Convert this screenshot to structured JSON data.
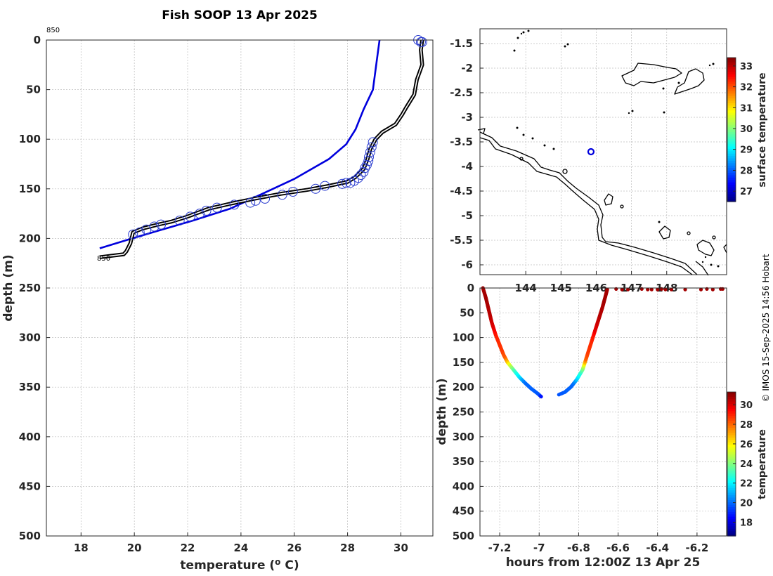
{
  "chart_data": [
    {
      "type": "line",
      "name": "profile",
      "title": "Fish SOOP 13 Apr 2025",
      "xlabel": "temperature (",
      "xlabel_sup": "o",
      "xlabel_unit": " C)",
      "ylabel": "depth (m)",
      "xlim": [
        16.7,
        31.2
      ],
      "ylim": [
        500,
        0
      ],
      "xticks": [
        18,
        20,
        22,
        24,
        26,
        28,
        30
      ],
      "yticks": [
        0,
        50,
        100,
        150,
        200,
        250,
        300,
        350,
        400,
        450,
        500
      ],
      "annotation_top": "850",
      "annotation_bottom": "850",
      "grid": true,
      "series": [
        {
          "name": "climatology",
          "color": "#0000dd",
          "x": [
            29.2,
            29.1,
            28.95,
            28.6,
            28.3,
            27.95,
            27.3,
            26.0,
            24.8,
            23.6,
            22.2,
            20.8,
            19.8,
            18.7
          ],
          "y": [
            0,
            20,
            50,
            70,
            90,
            105,
            120,
            140,
            155,
            170,
            182,
            193,
            201,
            210
          ]
        },
        {
          "name": "profile",
          "color": "#000000",
          "x": [
            30.8,
            30.75,
            30.8,
            30.6,
            30.5,
            30.2,
            30.05,
            29.8,
            29.3,
            29.05,
            28.85,
            28.75,
            28.6,
            28.3,
            28.0,
            27.3,
            26.5,
            25.5,
            24.5,
            23.6,
            22.8,
            22.0,
            21.4,
            20.9,
            20.3,
            19.95,
            19.85,
            19.7,
            19.6,
            18.7
          ],
          "y": [
            0,
            10,
            25,
            40,
            55,
            68,
            75,
            85,
            93,
            100,
            110,
            120,
            130,
            138,
            143,
            147,
            151,
            155,
            160,
            165,
            170,
            178,
            183,
            186,
            190,
            194,
            205,
            213,
            216,
            219
          ]
        },
        {
          "name": "flagged",
          "color": "#2a3ccf",
          "x": [
            30.65,
            30.75,
            30.8,
            28.95,
            28.9,
            28.85,
            28.8,
            28.78,
            28.72,
            28.65,
            28.6,
            28.5,
            28.4,
            28.25,
            28.1,
            27.95,
            27.8,
            27.15,
            26.8,
            25.95,
            25.55,
            24.9,
            24.55,
            24.35,
            23.75,
            23.1,
            22.7,
            22.45,
            22.1,
            21.7,
            21.0,
            20.75,
            20.45,
            20.2,
            19.95
          ],
          "y": [
            0,
            2,
            2,
            103,
            108,
            113,
            118,
            122,
            126,
            129,
            133,
            136,
            139,
            142,
            144,
            144,
            145,
            147,
            150,
            153,
            156,
            160,
            162,
            164,
            166,
            169,
            172,
            175,
            178,
            182,
            186,
            188,
            191,
            194,
            196
          ]
        }
      ]
    },
    {
      "type": "map",
      "name": "location",
      "colorbar_label": "surface temperature",
      "colorbar_ticks": [
        27,
        28,
        29,
        30,
        31,
        32,
        33
      ],
      "colorbar_range": [
        26.5,
        33.4
      ],
      "xlim": [
        142.7,
        149.7
      ],
      "ylim": [
        -6.2,
        -1.2
      ],
      "xticks": [
        144,
        145,
        146,
        147,
        148
      ],
      "xtick_labels": [
        "144",
        "145",
        "146",
        "147",
        "148"
      ],
      "yticks": [
        -1.5,
        -2,
        -2.5,
        -3,
        -3.5,
        -4,
        -4.5,
        -5,
        -5.5,
        -6
      ],
      "marker": {
        "lon": 145.85,
        "lat": -3.7,
        "color": "#0000dd"
      }
    },
    {
      "type": "scatter",
      "name": "depth-time",
      "xlabel": "hours from 12:00Z 13 Apr 25",
      "ylabel": "depth (m)",
      "xlim": [
        -7.3,
        -6.05
      ],
      "ylim": [
        500,
        0
      ],
      "xticks": [
        -7.2,
        -7,
        -6.8,
        -6.6,
        -6.4,
        -6.2
      ],
      "yticks": [
        0,
        50,
        100,
        150,
        200,
        250,
        300,
        350,
        400,
        450,
        500
      ],
      "colorbar_label": "temperature",
      "colorbar_ticks": [
        18,
        20,
        22,
        24,
        26,
        28,
        30
      ],
      "colorbar_range": [
        16.6,
        31.3
      ],
      "down_cast": {
        "t": [
          -7.285,
          -7.27,
          -7.255,
          -7.24,
          -7.22,
          -7.2,
          -7.18,
          -7.16,
          -7.13,
          -7.1,
          -7.07,
          -7.04,
          -7.01,
          -6.99
        ],
        "d": [
          0,
          20,
          45,
          70,
          95,
          115,
          135,
          150,
          165,
          180,
          192,
          203,
          212,
          219
        ]
      },
      "up_cast": {
        "t": [
          -6.9,
          -6.87,
          -6.84,
          -6.81,
          -6.78,
          -6.76,
          -6.74,
          -6.72,
          -6.7,
          -6.68,
          -6.665,
          -6.655
        ],
        "d": [
          215,
          210,
          200,
          185,
          165,
          140,
          115,
          90,
          65,
          40,
          18,
          3
        ]
      },
      "surface_points": {
        "t": [
          -6.61,
          -6.58,
          -6.55,
          -6.48,
          -6.45,
          -6.43,
          -6.4,
          -6.38,
          -6.36,
          -6.33,
          -6.26,
          -6.18,
          -6.15,
          -6.12,
          -6.08,
          -6.07
        ],
        "d": [
          2,
          3,
          3,
          2,
          3,
          3,
          3,
          2,
          3,
          3,
          3,
          3,
          2,
          3,
          2,
          2
        ]
      }
    }
  ],
  "credit": "© IMOS 15-Sep-2025 14:56 Hobart"
}
